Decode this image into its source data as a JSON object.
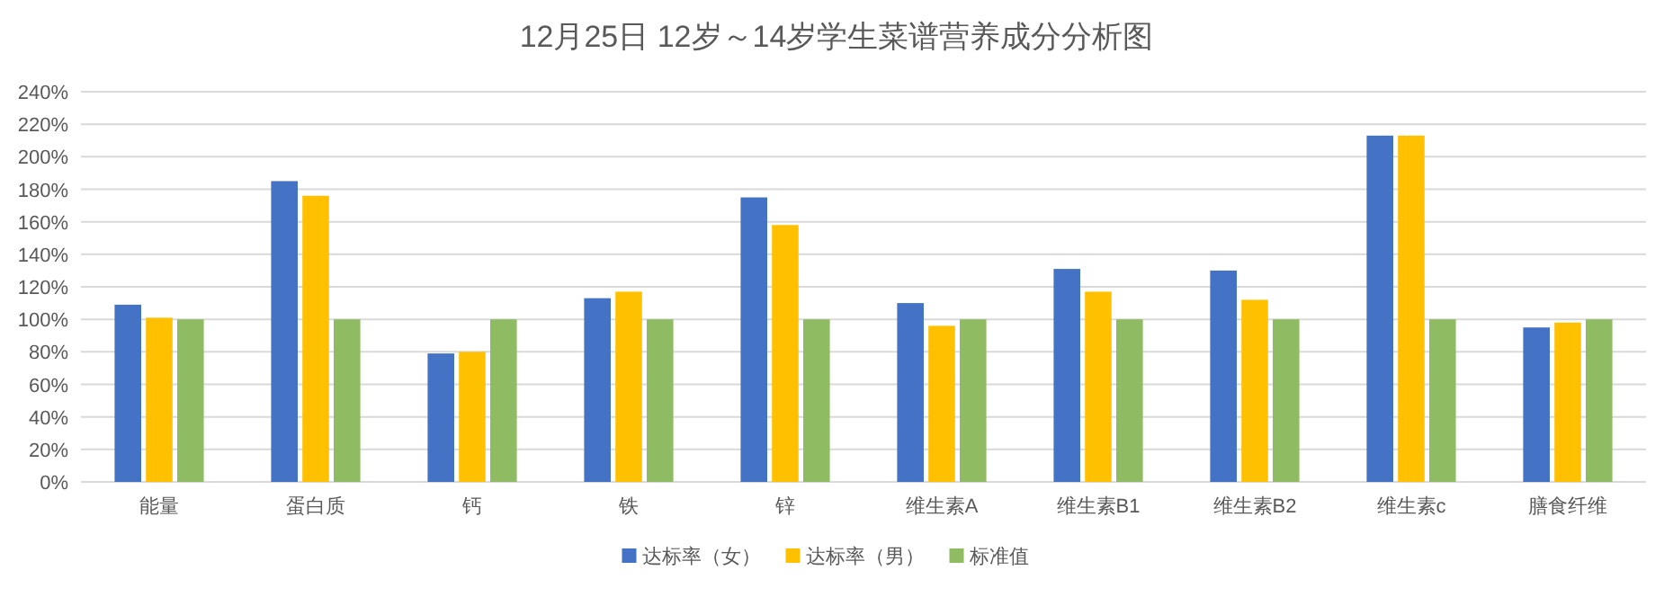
{
  "chart_data": {
    "type": "bar",
    "title": "12月25日 12岁～14岁学生菜谱营养成分分析图",
    "categories": [
      "能量",
      "蛋白质",
      "钙",
      "铁",
      "锌",
      "维生素A",
      "维生素B1",
      "维生素B2",
      "维生素c",
      "膳食纤维"
    ],
    "series": [
      {
        "name": "达标率（女）",
        "color": "#4472c4",
        "values": [
          109,
          185,
          79,
          113,
          175,
          110,
          131,
          130,
          213,
          95
        ]
      },
      {
        "name": "达标率（男）",
        "color": "#ffc000",
        "values": [
          101,
          176,
          80,
          117,
          158,
          96,
          117,
          112,
          213,
          98
        ]
      },
      {
        "name": "标准值",
        "color": "#8fbc63",
        "values": [
          100,
          100,
          100,
          100,
          100,
          100,
          100,
          100,
          100,
          100
        ]
      }
    ],
    "ylim": [
      0,
      240
    ],
    "yticks": [
      {
        "value": 0,
        "label": "0%"
      },
      {
        "value": 20,
        "label": "20%"
      },
      {
        "value": 40,
        "label": "40%"
      },
      {
        "value": 60,
        "label": "60%"
      },
      {
        "value": 80,
        "label": "80%"
      },
      {
        "value": 100,
        "label": "100%"
      },
      {
        "value": 120,
        "label": "120%"
      },
      {
        "value": 140,
        "label": "140%"
      },
      {
        "value": 160,
        "label": "160%"
      },
      {
        "value": 180,
        "label": "180%"
      },
      {
        "value": 200,
        "label": "200%"
      },
      {
        "value": 220,
        "label": "220%"
      },
      {
        "value": 240,
        "label": "240%"
      }
    ],
    "grid": "y",
    "legend": "bottom"
  }
}
